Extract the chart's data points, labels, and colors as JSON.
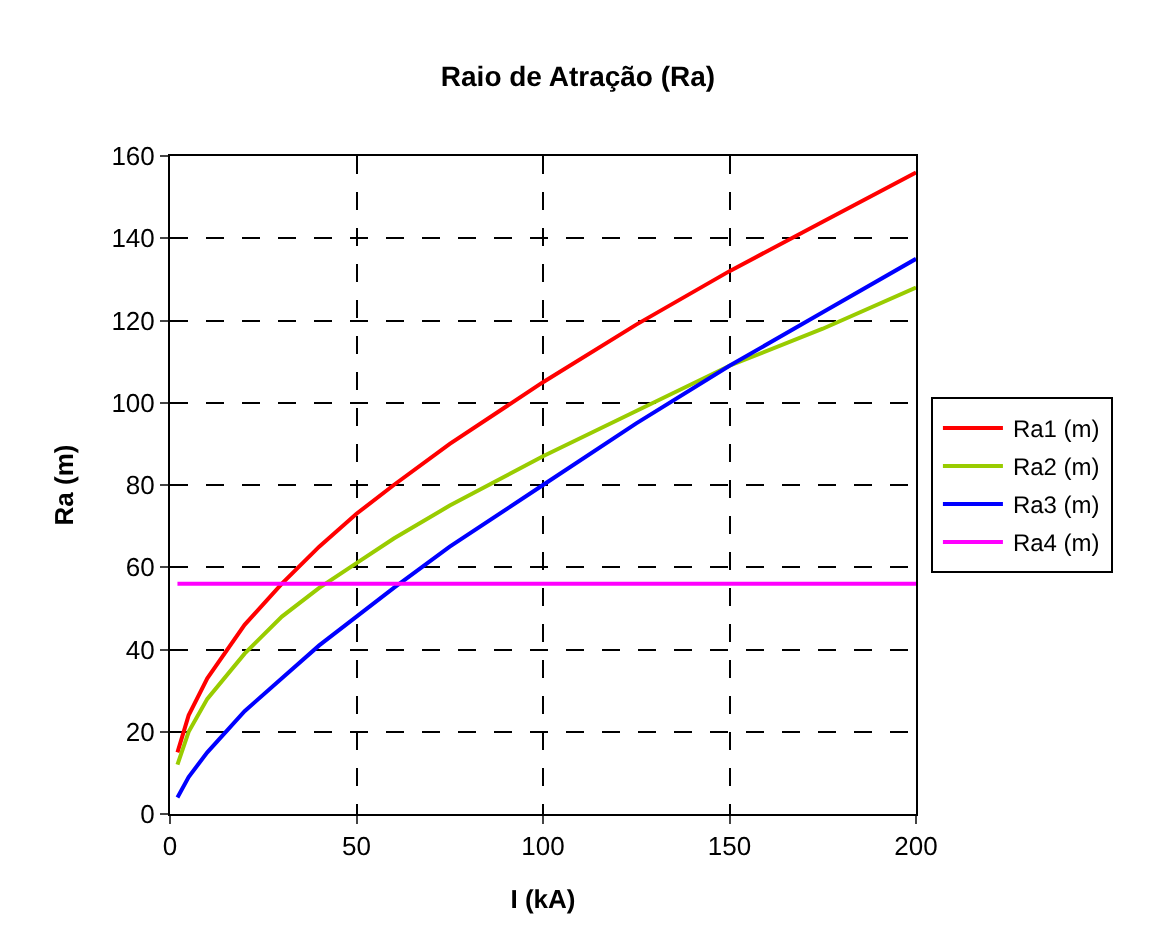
{
  "chart_data": {
    "type": "line",
    "title": "Raio de Atração (Ra)",
    "xlabel": "I (kA)",
    "ylabel": "Ra (m)",
    "xlim": [
      0,
      200
    ],
    "xticks": [
      0,
      50,
      100,
      150,
      200
    ],
    "ylim": [
      0,
      160
    ],
    "yticks": [
      0,
      20,
      40,
      60,
      80,
      100,
      120,
      140,
      160
    ],
    "grid": true,
    "legend": "right",
    "line_style": "solid",
    "marker": "none",
    "series": [
      {
        "name": "Ra1 (m)",
        "color": "#ff0000",
        "x": [
          2,
          5,
          10,
          20,
          30,
          40,
          50,
          60,
          75,
          100,
          125,
          150,
          175,
          200
        ],
        "values": [
          15,
          24,
          33,
          46,
          56,
          65,
          73,
          80,
          90,
          105,
          119,
          132,
          144,
          156
        ]
      },
      {
        "name": "Ra2 (m)",
        "color": "#99cc00",
        "x": [
          2,
          5,
          10,
          20,
          30,
          40,
          50,
          60,
          75,
          100,
          125,
          150,
          175,
          200
        ],
        "values": [
          12,
          20,
          28,
          39,
          48,
          55,
          61,
          67,
          75,
          87,
          98,
          109,
          118,
          128
        ]
      },
      {
        "name": "Ra3 (m)",
        "color": "#0000ff",
        "x": [
          2,
          5,
          10,
          20,
          30,
          40,
          50,
          60,
          75,
          100,
          125,
          150,
          175,
          200
        ],
        "values": [
          4,
          9,
          15,
          25,
          33,
          41,
          48,
          55,
          65,
          80,
          95,
          109,
          122,
          135
        ]
      },
      {
        "name": "Ra4 (m)",
        "color": "#ff00ff",
        "x": [
          2,
          200
        ],
        "values": [
          56,
          56
        ]
      }
    ]
  }
}
